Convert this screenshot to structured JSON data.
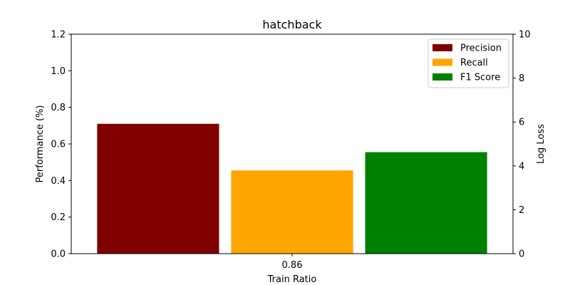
{
  "chart_data": {
    "type": "bar",
    "title": "hatchback",
    "xlabel": "Train Ratio",
    "ylabel": "Performance (%)",
    "y2label": "Log Loss",
    "categories": [
      "0.86"
    ],
    "ylim": [
      0,
      1.2
    ],
    "y2lim": [
      0,
      10
    ],
    "yticks": [
      "0.0",
      "0.2",
      "0.4",
      "0.6",
      "0.8",
      "1.0",
      "1.2"
    ],
    "y2ticks": [
      "0",
      "2",
      "4",
      "6",
      "8",
      "10"
    ],
    "series": [
      {
        "name": "Precision",
        "values": [
          0.71
        ],
        "color": "#800000"
      },
      {
        "name": "Recall",
        "values": [
          0.455
        ],
        "color": "#ffa500"
      },
      {
        "name": "F1 Score",
        "values": [
          0.555
        ],
        "color": "#008000"
      }
    ],
    "legend_position": "top-right",
    "grid": false,
    "y2label_color": "#800080"
  }
}
